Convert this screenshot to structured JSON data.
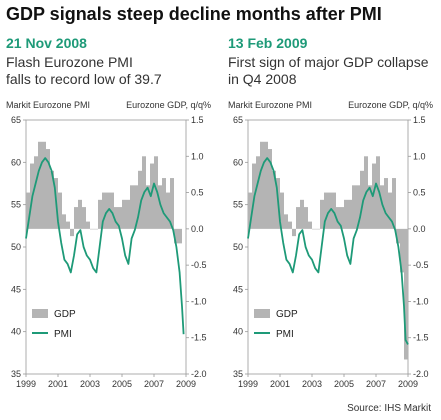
{
  "header": {
    "title": "GDP signals steep decline months after PMI"
  },
  "panels": [
    {
      "date": "21 Nov 2008",
      "subtitle_line1": "Flash Eurozone PMI",
      "subtitle_line2": "falls to record low of 39.7"
    },
    {
      "date": "13 Feb 2009",
      "subtitle_line1": "First sign of major GDP collapse",
      "subtitle_line2": "in Q4 2008"
    }
  ],
  "footer": {
    "source": "Source: IHS Markit"
  },
  "colors": {
    "pmi_line": "#1e9a78",
    "gdp_bars": "#b4b4b4",
    "axis": "#999999",
    "accent": "#1e9a78"
  },
  "chart_data": [
    {
      "type": "bar+line",
      "left_axis_label": "Markit Eurozone PMI",
      "right_axis_label": "Eurozone GDP, q/q%",
      "left_ylim": [
        35,
        65
      ],
      "left_ticks": [
        35,
        40,
        45,
        50,
        55,
        60,
        65
      ],
      "right_ylim": [
        -2.0,
        1.5
      ],
      "right_ticks": [
        "1.5",
        "1.0",
        "0.5",
        "0.0",
        "-0.5",
        "-1.0",
        "-1.5",
        "-2.0"
      ],
      "x_ticks": [
        "1999",
        "2001",
        "2003",
        "2005",
        "2007",
        "2009"
      ],
      "xlim": [
        1999,
        2009
      ],
      "legend": [
        "GDP",
        "PMI"
      ],
      "legend_placement": "bottom-left",
      "series": [
        {
          "name": "GDP",
          "kind": "bar",
          "x": [
            1999.0,
            1999.25,
            1999.5,
            1999.75,
            2000.0,
            2000.25,
            2000.5,
            2000.75,
            2001.0,
            2001.25,
            2001.5,
            2001.75,
            2002.0,
            2002.25,
            2002.5,
            2002.75,
            2003.0,
            2003.25,
            2003.5,
            2003.75,
            2004.0,
            2004.25,
            2004.5,
            2004.75,
            2005.0,
            2005.25,
            2005.5,
            2005.75,
            2006.0,
            2006.25,
            2006.5,
            2006.75,
            2007.0,
            2007.25,
            2007.5,
            2007.75,
            2008.0,
            2008.25,
            2008.5
          ],
          "values": [
            0.5,
            0.9,
            1.0,
            1.2,
            1.2,
            1.1,
            0.8,
            0.7,
            0.5,
            0.2,
            0.1,
            -0.1,
            0.3,
            0.4,
            0.3,
            0.1,
            0.0,
            0.0,
            0.4,
            0.5,
            0.5,
            0.5,
            0.3,
            0.3,
            0.4,
            0.4,
            0.6,
            0.6,
            0.8,
            1.0,
            0.6,
            0.9,
            1.0,
            0.6,
            0.7,
            0.5,
            0.7,
            -0.2,
            -0.2
          ]
        },
        {
          "name": "PMI",
          "kind": "line",
          "x": [
            1999.0,
            1999.2,
            1999.4,
            1999.6,
            1999.8,
            2000.0,
            2000.2,
            2000.4,
            2000.6,
            2000.8,
            2001.0,
            2001.2,
            2001.4,
            2001.6,
            2001.8,
            2002.0,
            2002.2,
            2002.4,
            2002.6,
            2002.8,
            2003.0,
            2003.2,
            2003.4,
            2003.6,
            2003.8,
            2004.0,
            2004.2,
            2004.4,
            2004.6,
            2004.8,
            2005.0,
            2005.2,
            2005.4,
            2005.6,
            2005.8,
            2006.0,
            2006.2,
            2006.4,
            2006.6,
            2006.8,
            2007.0,
            2007.2,
            2007.4,
            2007.6,
            2007.8,
            2008.0,
            2008.2,
            2008.4,
            2008.6,
            2008.75,
            2008.85
          ],
          "values": [
            51.0,
            53.5,
            56.0,
            57.5,
            59.0,
            60.0,
            60.5,
            60.0,
            59.0,
            57.0,
            53.0,
            50.5,
            48.5,
            48.0,
            47.0,
            49.0,
            51.5,
            52.0,
            50.0,
            49.0,
            48.5,
            47.5,
            47.0,
            50.0,
            53.0,
            54.0,
            54.5,
            54.0,
            53.0,
            52.5,
            51.0,
            49.0,
            48.0,
            51.0,
            52.0,
            53.5,
            55.5,
            56.5,
            57.0,
            56.0,
            57.5,
            56.5,
            55.0,
            54.0,
            53.5,
            53.0,
            52.0,
            50.0,
            47.0,
            43.0,
            39.7
          ]
        }
      ]
    },
    {
      "type": "bar+line",
      "left_axis_label": "Markit Eurozone PMI",
      "right_axis_label": "Eurozone GDP, q/q%",
      "left_ylim": [
        35,
        65
      ],
      "left_ticks": [
        35,
        40,
        45,
        50,
        55,
        60,
        65
      ],
      "right_ylim": [
        -2.0,
        1.5
      ],
      "right_ticks": [
        "1.5",
        "1.0",
        "0.5",
        "0.0",
        "-0.5",
        "-1.0",
        "-1.5",
        "-2.0"
      ],
      "x_ticks": [
        "1999",
        "2001",
        "2003",
        "2005",
        "2007",
        "2009"
      ],
      "xlim": [
        1999,
        2009
      ],
      "legend": [
        "GDP",
        "PMI"
      ],
      "legend_placement": "bottom-left",
      "series": [
        {
          "name": "GDP",
          "kind": "bar",
          "x": [
            1999.0,
            1999.25,
            1999.5,
            1999.75,
            2000.0,
            2000.25,
            2000.5,
            2000.75,
            2001.0,
            2001.25,
            2001.5,
            2001.75,
            2002.0,
            2002.25,
            2002.5,
            2002.75,
            2003.0,
            2003.25,
            2003.5,
            2003.75,
            2004.0,
            2004.25,
            2004.5,
            2004.75,
            2005.0,
            2005.25,
            2005.5,
            2005.75,
            2006.0,
            2006.25,
            2006.5,
            2006.75,
            2007.0,
            2007.25,
            2007.5,
            2007.75,
            2008.0,
            2008.25,
            2008.5,
            2008.75
          ],
          "values": [
            0.5,
            0.9,
            1.0,
            1.2,
            1.2,
            1.1,
            0.8,
            0.7,
            0.5,
            0.2,
            0.1,
            -0.1,
            0.3,
            0.4,
            0.3,
            0.1,
            0.0,
            0.0,
            0.4,
            0.5,
            0.5,
            0.5,
            0.3,
            0.3,
            0.4,
            0.4,
            0.6,
            0.6,
            0.8,
            1.0,
            0.6,
            0.9,
            1.0,
            0.6,
            0.7,
            0.5,
            0.7,
            -0.2,
            -0.6,
            -1.8
          ]
        },
        {
          "name": "PMI",
          "kind": "line",
          "x": [
            1999.0,
            1999.2,
            1999.4,
            1999.6,
            1999.8,
            2000.0,
            2000.2,
            2000.4,
            2000.6,
            2000.8,
            2001.0,
            2001.2,
            2001.4,
            2001.6,
            2001.8,
            2002.0,
            2002.2,
            2002.4,
            2002.6,
            2002.8,
            2003.0,
            2003.2,
            2003.4,
            2003.6,
            2003.8,
            2004.0,
            2004.2,
            2004.4,
            2004.6,
            2004.8,
            2005.0,
            2005.2,
            2005.4,
            2005.6,
            2005.8,
            2006.0,
            2006.2,
            2006.4,
            2006.6,
            2006.8,
            2007.0,
            2007.2,
            2007.4,
            2007.6,
            2007.8,
            2008.0,
            2008.2,
            2008.4,
            2008.6,
            2008.75,
            2008.85,
            2009.0
          ],
          "values": [
            51.0,
            53.5,
            56.0,
            57.5,
            59.0,
            60.0,
            60.5,
            60.0,
            59.0,
            57.0,
            53.0,
            50.5,
            48.5,
            48.0,
            47.0,
            49.0,
            51.5,
            52.0,
            50.0,
            49.0,
            48.5,
            47.5,
            47.0,
            50.0,
            53.0,
            54.0,
            54.5,
            54.0,
            53.0,
            52.5,
            51.0,
            49.0,
            48.0,
            51.0,
            52.0,
            53.5,
            55.5,
            56.5,
            57.0,
            56.0,
            57.5,
            56.5,
            55.0,
            54.0,
            53.5,
            53.0,
            52.0,
            50.0,
            47.0,
            43.0,
            39.0,
            38.5
          ]
        }
      ]
    }
  ]
}
